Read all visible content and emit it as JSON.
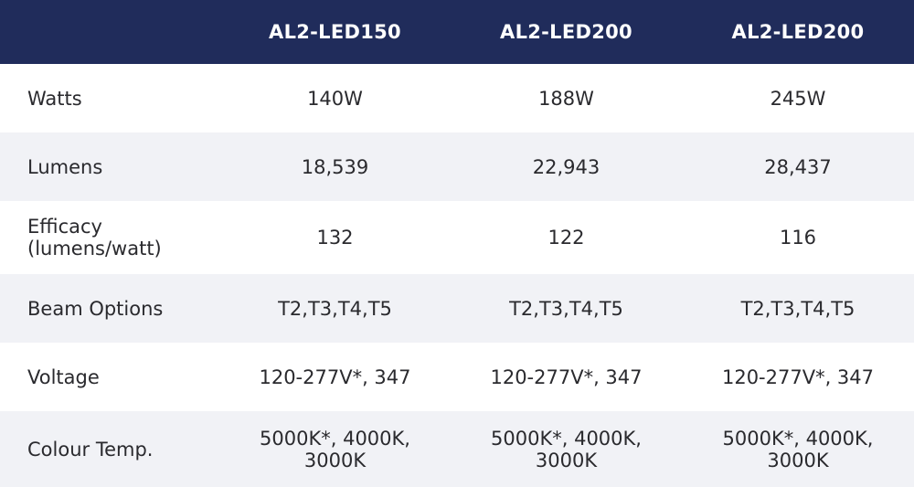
{
  "table": {
    "columns": [
      "",
      "AL2-LED150",
      "AL2-LED200",
      "AL2-LED200"
    ],
    "rows": [
      {
        "label": "Watts",
        "values": [
          "140W",
          "188W",
          "245W"
        ]
      },
      {
        "label": "Lumens",
        "values": [
          "18,539",
          "22,943",
          "28,437"
        ]
      },
      {
        "label": "Efficacy\n(lumens/watt)",
        "values": [
          "132",
          "122",
          "116"
        ]
      },
      {
        "label": "Beam Options",
        "values": [
          "T2,T3,T4,T5",
          "T2,T3,T4,T5",
          "T2,T3,T4,T5"
        ]
      },
      {
        "label": "Voltage",
        "values": [
          "120-277V*, 347",
          "120-277V*, 347",
          "120-277V*, 347"
        ]
      },
      {
        "label": "Colour Temp.",
        "values": [
          "5000K*, 4000K,\n3000K",
          "5000K*, 4000K,\n3000K",
          "5000K*, 4000K,\n3000K"
        ]
      }
    ]
  },
  "colors": {
    "header_bg": "#202c5b",
    "header_text": "#ffffff",
    "stripe": "#f1f2f6",
    "body_text": "#2a2a2e"
  }
}
